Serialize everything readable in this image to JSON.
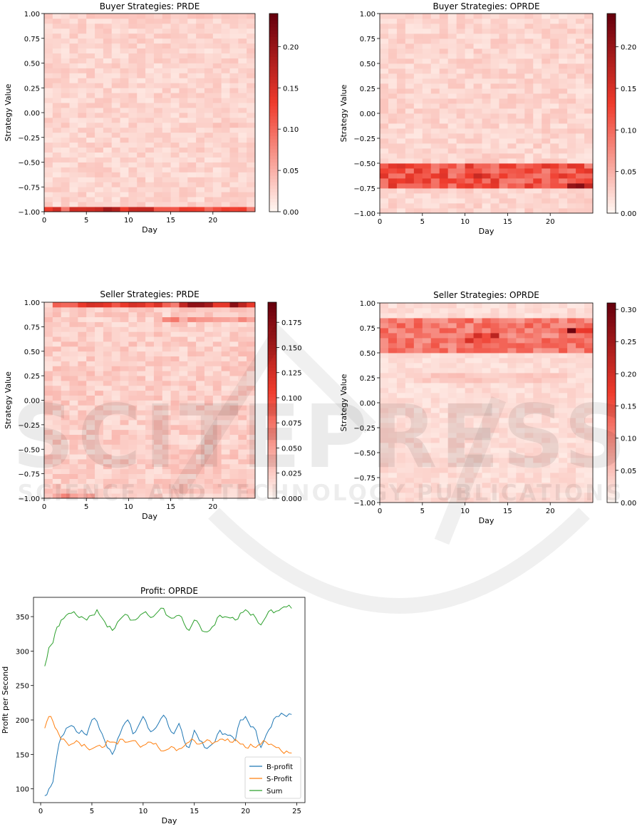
{
  "watermark": {
    "main": "SCITEPRESS",
    "sub": "SCIENCE AND TECHNOLOGY PUBLICATIONS"
  },
  "colors": {
    "cmap_low": "#fff5f0",
    "cmap_mid": "#ef3b2c",
    "cmap_high": "#67000d",
    "b_profit": "#1f77b4",
    "s_profit": "#ff7f0e",
    "sum": "#2ca02c"
  },
  "chart_data": [
    {
      "id": "buyer_prde",
      "type": "heatmap",
      "title": "Buyer Strategies: PRDE",
      "xlabel": "Day",
      "ylabel": "Strategy Value",
      "xlim": [
        0,
        25
      ],
      "ylim": [
        -1.0,
        1.0
      ],
      "xticks": [
        0,
        5,
        10,
        15,
        20
      ],
      "yticks": [
        -1.0,
        -0.75,
        -0.5,
        -0.25,
        0.0,
        0.25,
        0.5,
        0.75,
        1.0
      ],
      "ytick_labels": [
        "−1.00",
        "−0.75",
        "−0.50",
        "−0.25",
        "0.00",
        "0.25",
        "0.50",
        "0.75",
        "1.00"
      ],
      "colorbar_ticks": [
        "0.00",
        "0.05",
        "0.10",
        "0.15",
        "0.20"
      ],
      "colorbar_values": [
        0,
        0.05,
        0.1,
        0.15,
        0.2
      ],
      "vmax": 0.24,
      "hotspots": [
        {
          "day_range": [
            0,
            25
          ],
          "value_range": [
            -1.0,
            -0.95
          ],
          "level": 0.16
        },
        {
          "day_range": [
            3,
            9
          ],
          "value_range": [
            -1.0,
            -0.95
          ],
          "level": 0.22
        },
        {
          "day_range": [
            5,
            20
          ],
          "value_range": [
            0.95,
            1.0
          ],
          "level": 0.04
        },
        {
          "day_range": [
            18,
            25
          ],
          "value_range": [
            -0.15,
            -0.1
          ],
          "level": 0.04
        }
      ]
    },
    {
      "id": "buyer_oprde",
      "type": "heatmap",
      "title": "Buyer Strategies: OPRDE",
      "xlabel": "Day",
      "ylabel": "Strategy Value",
      "xlim": [
        0,
        25
      ],
      "ylim": [
        -1.0,
        1.0
      ],
      "xticks": [
        0,
        5,
        10,
        15,
        20
      ],
      "yticks": [
        -1.0,
        -0.75,
        -0.5,
        -0.25,
        0.0,
        0.25,
        0.5,
        0.75,
        1.0
      ],
      "ytick_labels": [
        "−1.00",
        "−0.75",
        "−0.50",
        "−0.25",
        "0.00",
        "0.25",
        "0.50",
        "0.75",
        "1.00"
      ],
      "colorbar_ticks": [
        "0.00",
        "0.05",
        "0.10",
        "0.15",
        "0.20"
      ],
      "colorbar_values": [
        0,
        0.05,
        0.1,
        0.15,
        0.2
      ],
      "vmax": 0.24,
      "hotspots": [
        {
          "day_range": [
            0,
            25
          ],
          "value_range": [
            -0.75,
            -0.5
          ],
          "level": 0.14
        },
        {
          "day_range": [
            10,
            12
          ],
          "value_range": [
            -0.65,
            -0.6
          ],
          "level": 0.23
        },
        {
          "day_range": [
            22,
            25
          ],
          "value_range": [
            -0.75,
            -0.7
          ],
          "level": 0.21
        },
        {
          "day_range": [
            0,
            1
          ],
          "value_range": [
            0.15,
            0.2
          ],
          "level": 0.04
        }
      ]
    },
    {
      "id": "seller_prde",
      "type": "heatmap",
      "title": "Seller Strategies: PRDE",
      "xlabel": "Day",
      "ylabel": "Strategy Value",
      "xlim": [
        0,
        25
      ],
      "ylim": [
        -1.0,
        1.0
      ],
      "xticks": [
        0,
        5,
        10,
        15,
        20
      ],
      "yticks": [
        -1.0,
        -0.75,
        -0.5,
        -0.25,
        0.0,
        0.25,
        0.5,
        0.75,
        1.0
      ],
      "ytick_labels": [
        "−1.00",
        "−0.75",
        "−0.50",
        "−0.25",
        "0.00",
        "0.25",
        "0.50",
        "0.75",
        "1.00"
      ],
      "colorbar_ticks": [
        "0.000",
        "0.025",
        "0.050",
        "0.075",
        "0.100",
        "0.125",
        "0.150",
        "0.175"
      ],
      "colorbar_values": [
        0,
        0.025,
        0.05,
        0.075,
        0.1,
        0.125,
        0.15,
        0.175
      ],
      "vmax": 0.195,
      "hotspots": [
        {
          "day_range": [
            1,
            25
          ],
          "value_range": [
            0.95,
            1.0
          ],
          "level": 0.12
        },
        {
          "day_range": [
            16,
            25
          ],
          "value_range": [
            0.95,
            1.0
          ],
          "level": 0.18
        },
        {
          "day_range": [
            14,
            25
          ],
          "value_range": [
            0.8,
            0.85
          ],
          "level": 0.07
        },
        {
          "day_range": [
            1,
            6
          ],
          "value_range": [
            -1.0,
            -0.95
          ],
          "level": 0.07
        }
      ]
    },
    {
      "id": "seller_oprde",
      "type": "heatmap",
      "title": "Seller Strategies: OPRDE",
      "xlabel": "Day",
      "ylabel": "Strategy Value",
      "xlim": [
        0,
        25
      ],
      "ylim": [
        -1.0,
        1.0
      ],
      "xticks": [
        0,
        5,
        10,
        15,
        20
      ],
      "yticks": [
        -1.0,
        -0.75,
        -0.5,
        -0.25,
        0.0,
        0.25,
        0.5,
        0.75,
        1.0
      ],
      "ytick_labels": [
        "−1.00",
        "−0.75",
        "−0.50",
        "−0.25",
        "0.00",
        "0.25",
        "0.50",
        "0.75",
        "1.00"
      ],
      "colorbar_ticks": [
        "0.00",
        "0.05",
        "0.10",
        "0.15",
        "0.20",
        "0.25",
        "0.30"
      ],
      "colorbar_values": [
        0,
        0.05,
        0.1,
        0.15,
        0.2,
        0.25,
        0.3
      ],
      "vmax": 0.31,
      "hotspots": [
        {
          "day_range": [
            0,
            25
          ],
          "value_range": [
            0.5,
            0.85
          ],
          "level": 0.14
        },
        {
          "day_range": [
            10,
            14
          ],
          "value_range": [
            0.6,
            0.7
          ],
          "level": 0.22
        },
        {
          "day_range": [
            22,
            25
          ],
          "value_range": [
            0.7,
            0.75
          ],
          "level": 0.3
        },
        {
          "day_range": [
            4,
            22
          ],
          "value_range": [
            0.2,
            0.3
          ],
          "level": 0.05
        }
      ]
    },
    {
      "id": "profit_oprde",
      "type": "line",
      "title": "Profit: OPRDE",
      "xlabel": "Day",
      "ylabel": "Profit per Second",
      "xlim": [
        -0.7,
        25.8
      ],
      "ylim": [
        80,
        378
      ],
      "xticks": [
        0,
        5,
        10,
        15,
        20,
        25
      ],
      "yticks": [
        100,
        150,
        200,
        250,
        300,
        350
      ],
      "legend": "bottom-right",
      "series": [
        {
          "name": "B-profit",
          "x": [
            0.4,
            0.8,
            1.2,
            1.6,
            2.0,
            2.5,
            3.0,
            3.5,
            4.0,
            4.5,
            5.0,
            5.5,
            6.0,
            6.5,
            7.0,
            7.5,
            8.0,
            8.5,
            9.0,
            9.5,
            10.0,
            10.5,
            11.0,
            11.5,
            12.0,
            12.5,
            13.0,
            13.5,
            14.0,
            14.5,
            15.0,
            15.5,
            16.0,
            16.5,
            17.0,
            17.5,
            18.0,
            18.5,
            19.0,
            19.5,
            20.0,
            20.5,
            21.0,
            21.5,
            22.0,
            22.5,
            23.0,
            23.5,
            24.0,
            24.5
          ],
          "values": [
            90,
            100,
            110,
            150,
            175,
            188,
            192,
            183,
            185,
            178,
            200,
            198,
            180,
            160,
            150,
            172,
            190,
            200,
            180,
            190,
            205,
            188,
            185,
            195,
            207,
            190,
            180,
            195,
            170,
            160,
            185,
            170,
            160,
            162,
            168,
            185,
            180,
            178,
            170,
            200,
            205,
            190,
            185,
            160,
            178,
            190,
            205,
            210,
            205,
            208
          ]
        },
        {
          "name": "S-Profit",
          "x": [
            0.4,
            0.8,
            1.2,
            1.6,
            2.0,
            2.5,
            3.0,
            3.5,
            4.0,
            4.5,
            5.0,
            5.5,
            6.0,
            6.5,
            7.0,
            7.5,
            8.0,
            8.5,
            9.0,
            9.5,
            10.0,
            10.5,
            11.0,
            11.5,
            12.0,
            12.5,
            13.0,
            13.5,
            14.0,
            14.5,
            15.0,
            15.5,
            16.0,
            16.5,
            17.0,
            17.5,
            18.0,
            18.5,
            19.0,
            19.5,
            20.0,
            20.5,
            21.0,
            21.5,
            22.0,
            22.5,
            23.0,
            23.5,
            24.0,
            24.5
          ],
          "values": [
            188,
            205,
            198,
            185,
            172,
            168,
            165,
            170,
            162,
            160,
            158,
            162,
            160,
            170,
            168,
            165,
            172,
            168,
            170,
            165,
            163,
            168,
            165,
            160,
            155,
            158,
            160,
            158,
            162,
            168,
            170,
            165,
            168,
            170,
            168,
            172,
            170,
            168,
            172,
            165,
            160,
            165,
            160,
            165,
            168,
            165,
            160,
            155,
            155,
            152
          ]
        },
        {
          "name": "Sum",
          "x": [
            0.4,
            0.8,
            1.2,
            1.6,
            2.0,
            2.5,
            3.0,
            3.5,
            4.0,
            4.5,
            5.0,
            5.5,
            6.0,
            6.5,
            7.0,
            7.5,
            8.0,
            8.5,
            9.0,
            9.5,
            10.0,
            10.5,
            11.0,
            11.5,
            12.0,
            12.5,
            13.0,
            13.5,
            14.0,
            14.5,
            15.0,
            15.5,
            16.0,
            16.5,
            17.0,
            17.5,
            18.0,
            18.5,
            19.0,
            19.5,
            20.0,
            20.5,
            21.0,
            21.5,
            22.0,
            22.5,
            23.0,
            23.5,
            24.0,
            24.5
          ],
          "values": [
            278,
            305,
            312,
            335,
            345,
            352,
            355,
            352,
            350,
            345,
            352,
            360,
            348,
            335,
            330,
            342,
            350,
            352,
            345,
            348,
            355,
            352,
            350,
            358,
            362,
            350,
            348,
            352,
            340,
            330,
            345,
            338,
            328,
            330,
            338,
            352,
            350,
            348,
            345,
            355,
            360,
            352,
            348,
            338,
            350,
            360,
            358,
            362,
            364,
            362
          ]
        }
      ]
    }
  ]
}
